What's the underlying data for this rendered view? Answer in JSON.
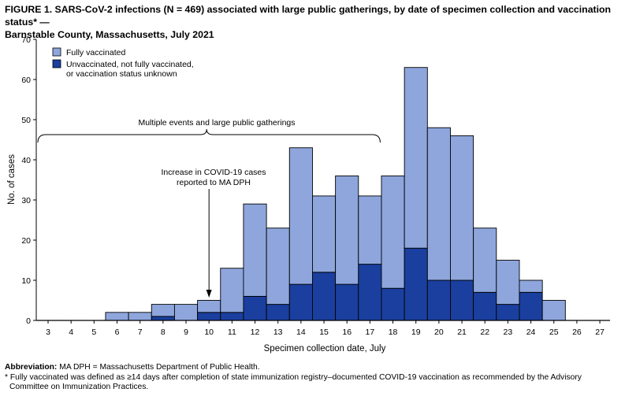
{
  "figure": {
    "title_line1": "FIGURE 1. SARS-CoV-2 infections (N = 469) associated with large public gatherings, by date of specimen collection and vaccination status* —",
    "title_line2": "Barnstable County, Massachusetts, July 2021"
  },
  "footnotes": {
    "abbreviation": "Abbreviation: MA DPH = Massachusetts Department of Public Health.",
    "star_line1": "* Fully vaccinated was defined as ≥14 days after completion of state immunization registry–documented COVID-19 vaccination as recommended by the Advisory",
    "star_line2": "Committee on Immunization Practices."
  },
  "chart_data": {
    "type": "bar",
    "stacked": true,
    "title": "SARS-CoV-2 infections (N = 469) associated with large public gatherings, by date of specimen collection and vaccination status",
    "xlabel": "Specimen collection date, July",
    "ylabel": "No. of cases",
    "ylim": [
      0,
      70
    ],
    "yticks": [
      0,
      10,
      20,
      30,
      40,
      50,
      60,
      70
    ],
    "categories": [
      "3",
      "4",
      "5",
      "6",
      "7",
      "8",
      "9",
      "10",
      "11",
      "12",
      "13",
      "14",
      "15",
      "16",
      "17",
      "18",
      "19",
      "20",
      "21",
      "22",
      "23",
      "24",
      "25",
      "26",
      "27"
    ],
    "series": [
      {
        "name": "Unvaccinated, not fully vaccinated, or vaccination status unknown",
        "color": "#1a3f9e",
        "values": [
          0,
          0,
          0,
          0,
          0,
          1,
          0,
          2,
          2,
          6,
          4,
          9,
          12,
          9,
          14,
          8,
          18,
          10,
          10,
          7,
          4,
          7,
          0,
          0,
          0
        ]
      },
      {
        "name": "Fully vaccinated",
        "color": "#8ea6dc",
        "values": [
          0,
          0,
          0,
          2,
          2,
          3,
          4,
          3,
          11,
          23,
          19,
          34,
          19,
          27,
          17,
          28,
          45,
          38,
          36,
          16,
          11,
          3,
          5,
          0,
          0
        ]
      }
    ],
    "legend": {
      "position": "top-left",
      "fully_vaccinated": "Fully vaccinated",
      "unvaccinated_line1": "Unvaccinated, not fully vaccinated,",
      "unvaccinated_line2": "or vaccination status unknown"
    },
    "annotations": {
      "events_label": "Multiple events and large public gatherings",
      "events_range": [
        "3",
        "17"
      ],
      "increase_line1": "Increase in COVID-19 cases",
      "increase_line2": "reported to MA DPH",
      "increase_date": "10"
    },
    "grid": false
  }
}
